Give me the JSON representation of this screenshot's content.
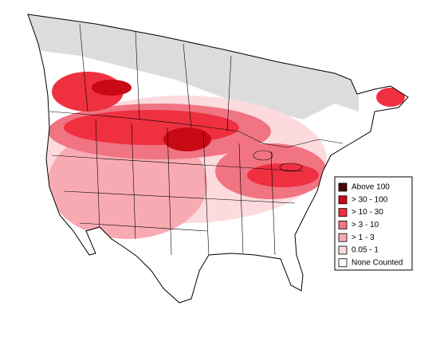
{
  "legend": {
    "items": [
      {
        "label": "Above 100",
        "color": "#4a0808"
      },
      {
        "label": "> 30 - 100",
        "color": "#c80a14"
      },
      {
        "label": "> 10 - 30",
        "color": "#ee3040"
      },
      {
        "label": "> 3 - 10",
        "color": "#f07482"
      },
      {
        "label": "> 1 - 3",
        "color": "#f8aab2"
      },
      {
        "label": "0.05 - 1",
        "color": "#fcdadd"
      },
      {
        "label": "None Counted",
        "color": "#ffffff"
      }
    ]
  }
}
